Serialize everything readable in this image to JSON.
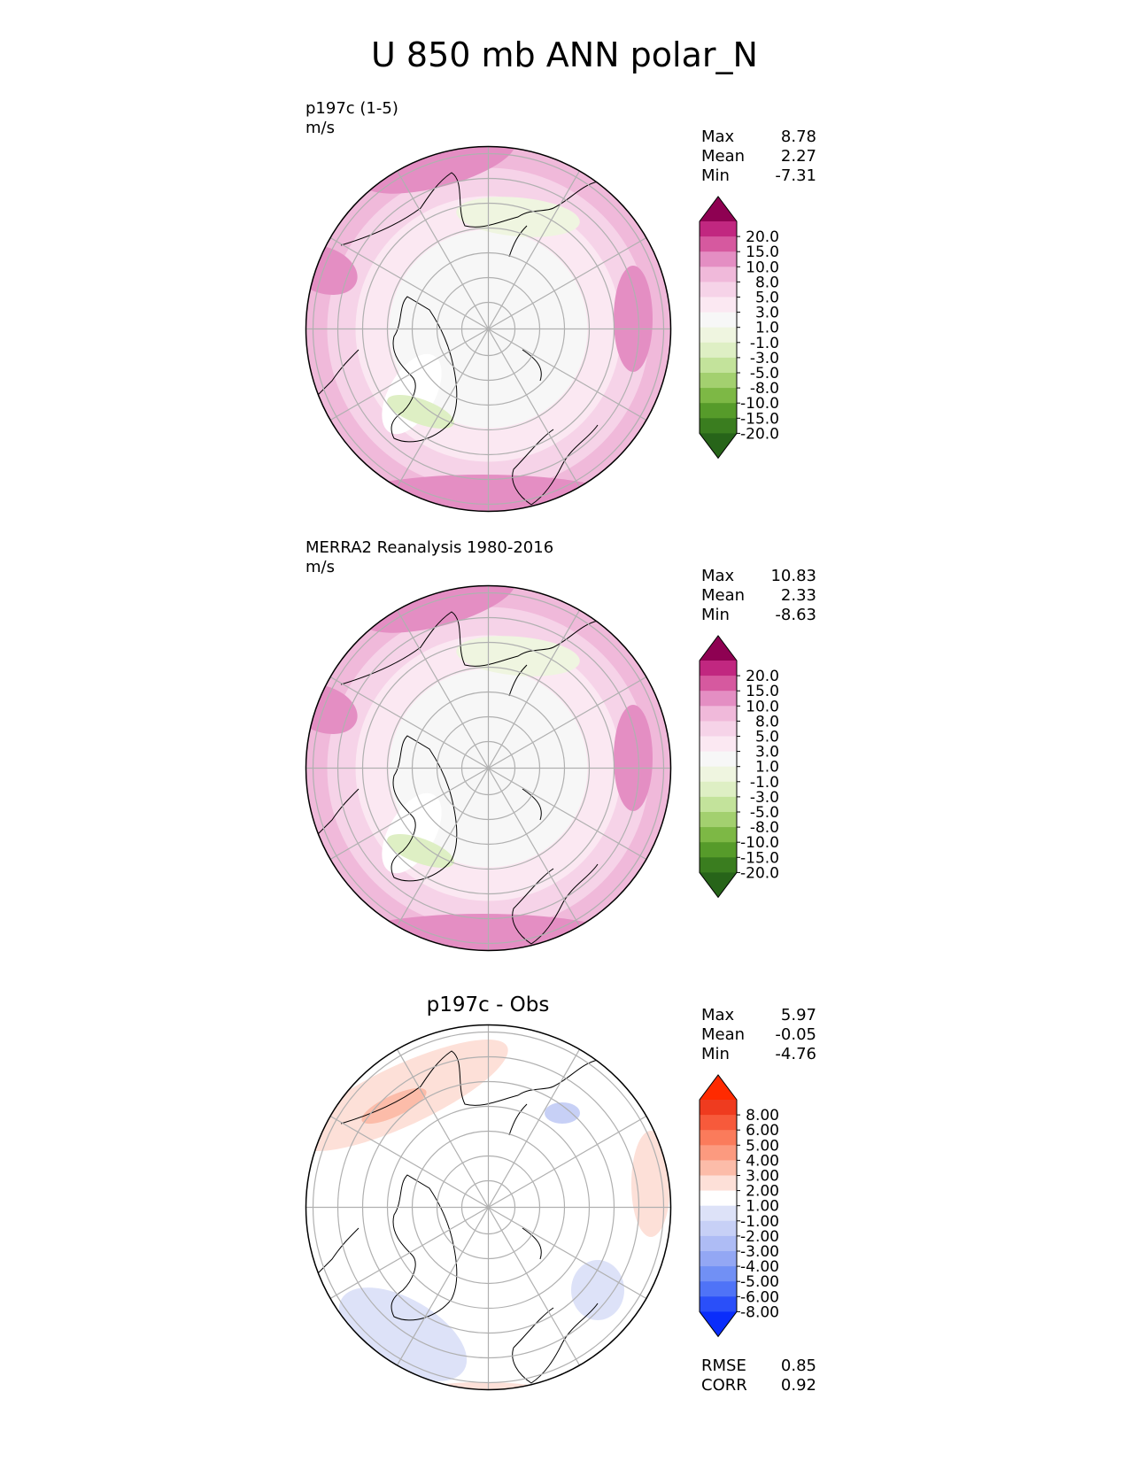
{
  "title": "U 850 mb ANN polar_N",
  "colors": {
    "diverging_pos": [
      "#fbe8f2",
      "#f6d3e8",
      "#f0b9da",
      "#e48ec3",
      "#d6599f",
      "#c12780",
      "#8e0152"
    ],
    "diverging_neg": [
      "#eff5e0",
      "#deefc4",
      "#c3e39b",
      "#a3d06f",
      "#7db845",
      "#569b2a",
      "#3a7d1f",
      "#276419"
    ],
    "neutral": "#f7f7f7",
    "diff_pos": [
      "#fde0d8",
      "#fcbca9",
      "#fc9a7f",
      "#fb7b5b",
      "#f75a3b",
      "#ef3b1f",
      "#ff2a00"
    ],
    "diff_neg": [
      "#dde2f8",
      "#c7d0f6",
      "#aebcf5",
      "#93a7f4",
      "#7190f5",
      "#4f73f7",
      "#2a4ff9",
      "#0a2dfb"
    ]
  },
  "chart_data": [
    {
      "type": "heatmap",
      "title": "",
      "subtitle": "p197c (1-5)",
      "units": "m/s",
      "projection": "north-polar-stereographic",
      "stats": {
        "max": "8.78",
        "mean": "2.27",
        "min": "-7.31"
      },
      "colorbar_ticks": [
        "20.0",
        "15.0",
        "10.0",
        "8.0",
        "5.0",
        "3.0",
        "1.0",
        "-1.0",
        "-3.0",
        "-5.0",
        "-8.0",
        "-10.0",
        "-15.0",
        "-20.0"
      ],
      "stat_labels": {
        "max": "Max",
        "mean": "Mean",
        "min": "Min"
      }
    },
    {
      "type": "heatmap",
      "title": "",
      "subtitle": "MERRA2 Reanalysis 1980-2016",
      "units": "m/s",
      "projection": "north-polar-stereographic",
      "stats": {
        "max": "10.83",
        "mean": "2.33",
        "min": "-8.63"
      },
      "colorbar_ticks": [
        "20.0",
        "15.0",
        "10.0",
        "8.0",
        "5.0",
        "3.0",
        "1.0",
        "-1.0",
        "-3.0",
        "-5.0",
        "-8.0",
        "-10.0",
        "-15.0",
        "-20.0"
      ],
      "stat_labels": {
        "max": "Max",
        "mean": "Mean",
        "min": "Min"
      }
    },
    {
      "type": "heatmap",
      "title": "p197c - Obs",
      "subtitle": "",
      "units": "",
      "projection": "north-polar-stereographic",
      "stats": {
        "max": "5.97",
        "mean": "-0.05",
        "min": "-4.76"
      },
      "colorbar_ticks": [
        "8.00",
        "6.00",
        "5.00",
        "4.00",
        "3.00",
        "2.00",
        "1.00",
        "-1.00",
        "-2.00",
        "-3.00",
        "-4.00",
        "-5.00",
        "-6.00",
        "-8.00"
      ],
      "stat_labels": {
        "max": "Max",
        "mean": "Mean",
        "min": "Min"
      },
      "metrics": {
        "rmse_label": "RMSE",
        "rmse": "0.85",
        "corr_label": "CORR",
        "corr": "0.92"
      }
    }
  ]
}
